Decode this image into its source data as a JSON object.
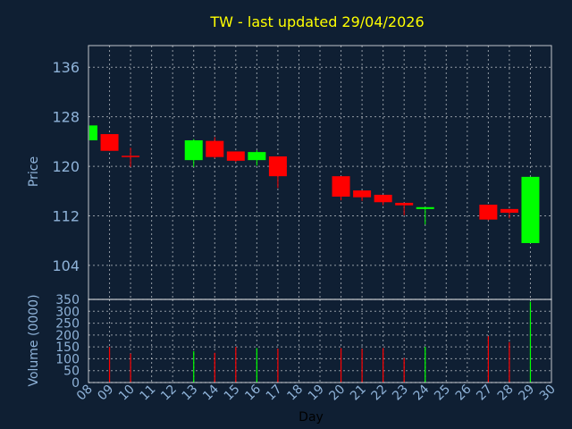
{
  "chart_data": [
    {
      "type": "candlestick",
      "title": "TW - last updated 29/04/2026",
      "ylabel": "Price",
      "xlabel": "",
      "yticks": [
        104,
        112,
        120,
        128,
        136
      ],
      "ylim": [
        98.5,
        139.5
      ],
      "xlim": [
        8,
        30
      ],
      "grid": true,
      "up_color": "#00ff00",
      "down_color": "#ff0000",
      "candles": [
        {
          "day": 8,
          "open": 124.2,
          "high": 126.6,
          "low": 124.2,
          "close": 126.6
        },
        {
          "day": 9,
          "open": 125.2,
          "high": 125.2,
          "low": 122.5,
          "close": 122.5
        },
        {
          "day": 10,
          "open": 121.7,
          "high": 123.0,
          "low": 119.9,
          "close": 121.5
        },
        {
          "day": 13,
          "open": 121.0,
          "high": 124.4,
          "low": 119.9,
          "close": 124.2
        },
        {
          "day": 14,
          "open": 124.1,
          "high": 124.7,
          "low": 121.3,
          "close": 121.5
        },
        {
          "day": 15,
          "open": 122.4,
          "high": 122.4,
          "low": 120.7,
          "close": 120.9
        },
        {
          "day": 16,
          "open": 121.0,
          "high": 122.6,
          "low": 120.1,
          "close": 122.3
        },
        {
          "day": 17,
          "open": 121.6,
          "high": 121.6,
          "low": 116.5,
          "close": 118.4
        },
        {
          "day": 20,
          "open": 118.4,
          "high": 118.4,
          "low": 114.5,
          "close": 115.1
        },
        {
          "day": 21,
          "open": 116.1,
          "high": 116.1,
          "low": 114.4,
          "close": 115.0
        },
        {
          "day": 22,
          "open": 115.4,
          "high": 115.4,
          "low": 113.7,
          "close": 114.2
        },
        {
          "day": 23,
          "open": 114.1,
          "high": 114.1,
          "low": 112.1,
          "close": 113.7
        },
        {
          "day": 24,
          "open": 113.1,
          "high": 113.4,
          "low": 110.6,
          "close": 113.4
        },
        {
          "day": 27,
          "open": 113.8,
          "high": 113.8,
          "low": 111.3,
          "close": 111.4
        },
        {
          "day": 28,
          "open": 113.1,
          "high": 113.1,
          "low": 111.6,
          "close": 112.5
        },
        {
          "day": 29,
          "open": 107.6,
          "high": 118.3,
          "low": 107.6,
          "close": 118.3
        }
      ]
    },
    {
      "type": "bar",
      "ylabel": "Volume (0000)",
      "xlabel": "Day",
      "yticks": [
        0,
        50,
        100,
        150,
        200,
        250,
        300,
        350
      ],
      "ylim": [
        0,
        350
      ],
      "xlim": [
        8,
        30
      ],
      "grid": true,
      "x_tick_labels": [
        "08",
        "09",
        "10",
        "11",
        "12",
        "13",
        "14",
        "15",
        "16",
        "17",
        "18",
        "19",
        "20",
        "21",
        "22",
        "23",
        "24",
        "25",
        "26",
        "27",
        "28",
        "29",
        "30"
      ],
      "bars": [
        {
          "day": 8,
          "value": 0,
          "direction": "up"
        },
        {
          "day": 9,
          "value": 150,
          "direction": "down"
        },
        {
          "day": 10,
          "value": 122,
          "direction": "down"
        },
        {
          "day": 13,
          "value": 132,
          "direction": "up"
        },
        {
          "day": 14,
          "value": 125,
          "direction": "down"
        },
        {
          "day": 15,
          "value": 150,
          "direction": "down"
        },
        {
          "day": 16,
          "value": 145,
          "direction": "up"
        },
        {
          "day": 17,
          "value": 143,
          "direction": "down"
        },
        {
          "day": 20,
          "value": 145,
          "direction": "down"
        },
        {
          "day": 21,
          "value": 142,
          "direction": "down"
        },
        {
          "day": 22,
          "value": 145,
          "direction": "down"
        },
        {
          "day": 23,
          "value": 103,
          "direction": "down"
        },
        {
          "day": 24,
          "value": 150,
          "direction": "up"
        },
        {
          "day": 27,
          "value": 195,
          "direction": "down"
        },
        {
          "day": 28,
          "value": 170,
          "direction": "down"
        },
        {
          "day": 29,
          "value": 340,
          "direction": "up"
        }
      ]
    }
  ]
}
